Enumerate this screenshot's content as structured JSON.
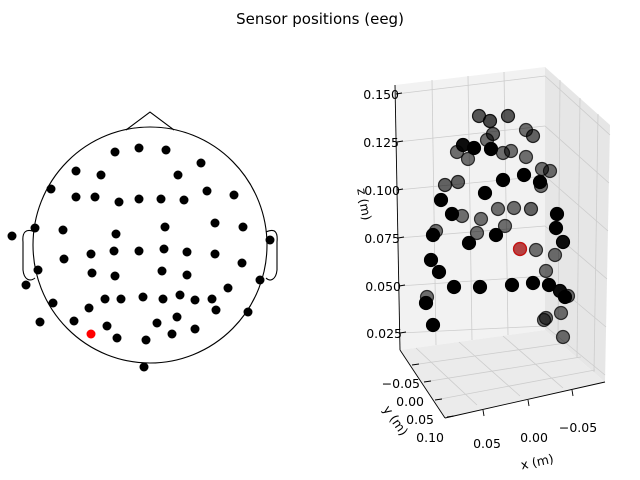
{
  "figure": {
    "title": "Sensor positions (eeg)"
  },
  "chart_data": [
    {
      "type": "scatter",
      "panel": "topomap-2d",
      "title": "",
      "xlabel": "",
      "ylabel": "",
      "grid": false,
      "highlight_color": "#ff0000",
      "point_color": "#000000",
      "highlighted_index": 59,
      "points": [
        [
          115,
          152
        ],
        [
          139,
          148
        ],
        [
          166,
          150
        ],
        [
          201,
          163
        ],
        [
          76,
          171
        ],
        [
          101,
          175
        ],
        [
          178,
          175
        ],
        [
          51,
          189
        ],
        [
          76,
          197
        ],
        [
          95,
          197
        ],
        [
          119,
          202
        ],
        [
          139,
          199
        ],
        [
          161,
          199
        ],
        [
          184,
          200
        ],
        [
          207,
          191
        ],
        [
          234,
          195
        ],
        [
          215,
          223
        ],
        [
          243,
          227
        ],
        [
          35,
          228
        ],
        [
          63,
          230
        ],
        [
          116,
          234
        ],
        [
          165,
          227
        ],
        [
          12,
          236
        ],
        [
          270,
          240
        ],
        [
          91,
          254
        ],
        [
          114,
          251
        ],
        [
          139,
          251
        ],
        [
          164,
          249
        ],
        [
          187,
          252
        ],
        [
          215,
          254
        ],
        [
          64,
          259
        ],
        [
          242,
          263
        ],
        [
          38,
          270
        ],
        [
          92,
          273
        ],
        [
          115,
          276
        ],
        [
          162,
          271
        ],
        [
          187,
          275
        ],
        [
          26,
          285
        ],
        [
          260,
          280
        ],
        [
          228,
          288
        ],
        [
          53,
          303
        ],
        [
          105,
          299
        ],
        [
          121,
          299
        ],
        [
          143,
          297
        ],
        [
          163,
          299
        ],
        [
          180,
          295
        ],
        [
          195,
          300
        ],
        [
          212,
          299
        ],
        [
          89,
          308
        ],
        [
          177,
          317
        ],
        [
          248,
          312
        ],
        [
          216,
          310
        ],
        [
          40,
          322
        ],
        [
          74,
          321
        ],
        [
          107,
          326
        ],
        [
          157,
          323
        ],
        [
          195,
          329
        ],
        [
          117,
          338
        ],
        [
          172,
          334
        ],
        [
          91,
          334
        ],
        [
          146,
          340
        ],
        [
          144,
          367
        ]
      ]
    },
    {
      "type": "scatter",
      "panel": "3d",
      "title": "",
      "xlabel": "x (m)",
      "ylabel": "y (m)",
      "zlabel": "z (m)",
      "grid": true,
      "x_ticks": [
        "0.05",
        "0.00",
        "−0.05"
      ],
      "y_ticks": [
        "−0.05",
        "0.00",
        "0.05",
        "0.10"
      ],
      "z_ticks": [
        "0.025",
        "0.050",
        "0.075",
        "0.100",
        "0.125",
        "0.150"
      ],
      "highlighted_index": 61,
      "points": [
        [
          479,
          116,
          0.65
        ],
        [
          508,
          116,
          0.65
        ],
        [
          490,
          121,
          0.7
        ],
        [
          493,
          134,
          0.6
        ],
        [
          526,
          130,
          0.55
        ],
        [
          533,
          136,
          0.6
        ],
        [
          463,
          145,
          0.95
        ],
        [
          457,
          152,
          0.55
        ],
        [
          474,
          148,
          1.0
        ],
        [
          491,
          149,
          1.0
        ],
        [
          511,
          151,
          0.55
        ],
        [
          526,
          157,
          0.55
        ],
        [
          542,
          169,
          0.55
        ],
        [
          550,
          171,
          0.55
        ],
        [
          503,
          180,
          1.0
        ],
        [
          524,
          175,
          1.0
        ],
        [
          540,
          182,
          1.0
        ],
        [
          445,
          185,
          0.6
        ],
        [
          458,
          182,
          0.6
        ],
        [
          485,
          193,
          1.0
        ],
        [
          441,
          200,
          1.0
        ],
        [
          498,
          209,
          0.55
        ],
        [
          514,
          208,
          0.55
        ],
        [
          531,
          209,
          0.6
        ],
        [
          452,
          214,
          1.0
        ],
        [
          481,
          219,
          0.55
        ],
        [
          557,
          214,
          1.0
        ],
        [
          505,
          226,
          0.55
        ],
        [
          462,
          216,
          0.55
        ],
        [
          556,
          228,
          1.0
        ],
        [
          433,
          235,
          1.0
        ],
        [
          436,
          231,
          0.55
        ],
        [
          496,
          235,
          1.0
        ],
        [
          469,
          243,
          1.0
        ],
        [
          563,
          242,
          0.95
        ],
        [
          520,
          249,
          0.5
        ],
        [
          536,
          250,
          0.55
        ],
        [
          555,
          255,
          0.55
        ],
        [
          431,
          260,
          1.0
        ],
        [
          439,
          272,
          1.0
        ],
        [
          546,
          271,
          0.55
        ],
        [
          454,
          287,
          1.0
        ],
        [
          480,
          287,
          1.0
        ],
        [
          512,
          285,
          1.0
        ],
        [
          533,
          283,
          1.0
        ],
        [
          549,
          285,
          1.0
        ],
        [
          560,
          291,
          0.95
        ],
        [
          565,
          297,
          1.0
        ],
        [
          568,
          296,
          0.55
        ],
        [
          427,
          297,
          0.55
        ],
        [
          426,
          303,
          1.0
        ],
        [
          546,
          318,
          0.55
        ],
        [
          433,
          325,
          1.0
        ],
        [
          561,
          313,
          0.55
        ],
        [
          544,
          320,
          0.55
        ],
        [
          563,
          337,
          0.55
        ],
        [
          468,
          159,
          0.55
        ],
        [
          487,
          140,
          0.55
        ],
        [
          503,
          153,
          0.55
        ],
        [
          541,
          186,
          0.55
        ],
        [
          477,
          233,
          0.55
        ],
        [
          520,
          249,
          0.45
        ]
      ]
    }
  ]
}
